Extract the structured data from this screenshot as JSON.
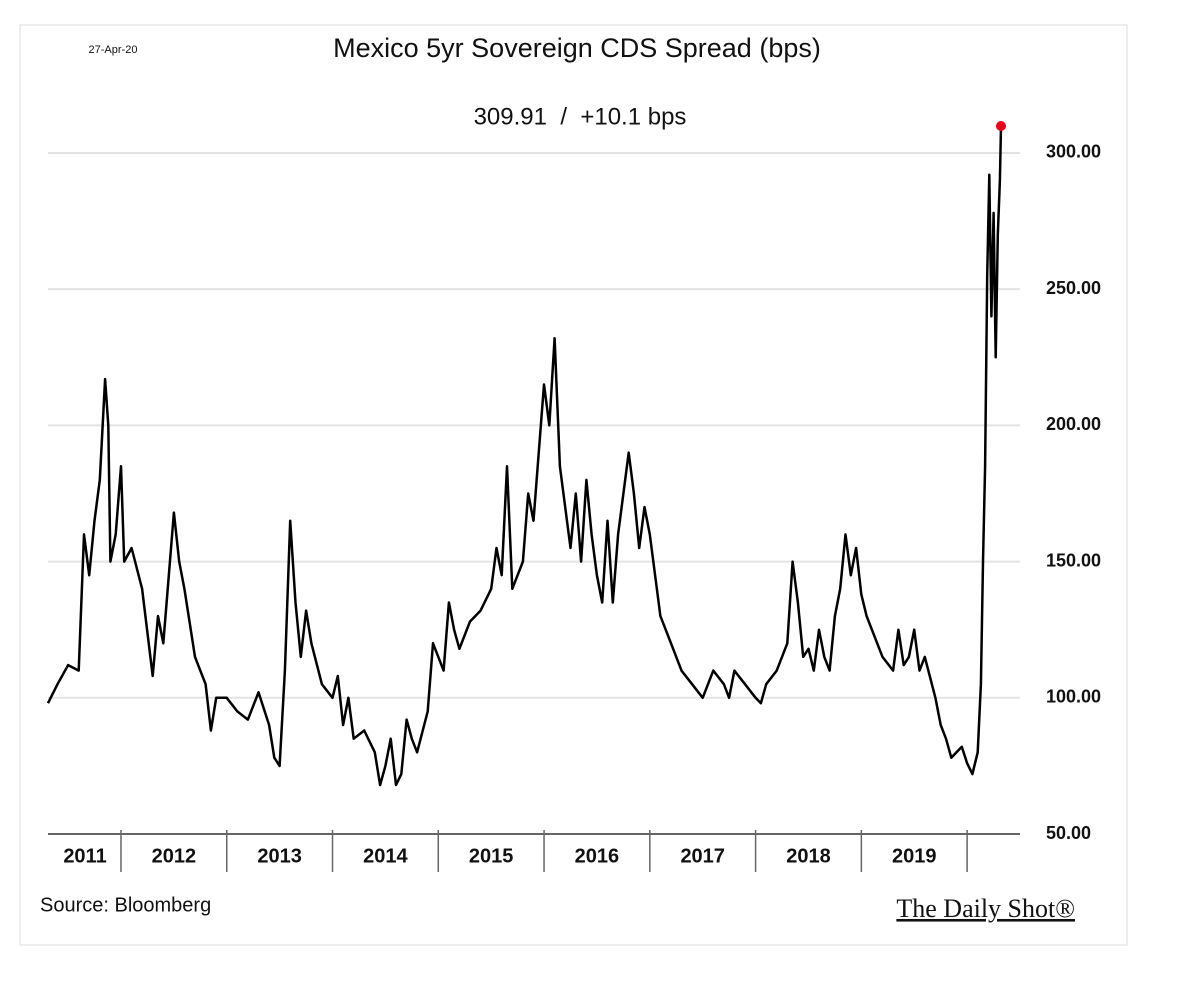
{
  "chart_data": {
    "type": "line",
    "date": "27-Apr-20",
    "title": "Mexico 5yr Sovereign CDS Spread (bps)",
    "subtitle": "309.91  /  +10.1 bps",
    "source": "Source: Bloomberg",
    "brand": "The Daily Shot®",
    "color": "#000000",
    "last_point_color": "#e8001c",
    "grid": true,
    "xlim": [
      2011.31,
      2020.5
    ],
    "ylim": [
      50,
      320
    ],
    "yticks": [
      {
        "value": 50,
        "label": "50.00"
      },
      {
        "value": 100,
        "label": "100.00"
      },
      {
        "value": 150,
        "label": "150.00"
      },
      {
        "value": 200,
        "label": "200.00"
      },
      {
        "value": 250,
        "label": "250.00"
      },
      {
        "value": 300,
        "label": "300.00"
      }
    ],
    "xticks": [
      {
        "value": 2011.66,
        "label": "2011"
      },
      {
        "value": 2012.5,
        "label": "2012"
      },
      {
        "value": 2013.5,
        "label": "2013"
      },
      {
        "value": 2014.5,
        "label": "2014"
      },
      {
        "value": 2015.5,
        "label": "2015"
      },
      {
        "value": 2016.5,
        "label": "2016"
      },
      {
        "value": 2017.5,
        "label": "2017"
      },
      {
        "value": 2018.5,
        "label": "2018"
      },
      {
        "value": 2019.5,
        "label": "2019"
      }
    ],
    "xseparators": [
      2012,
      2013,
      2014,
      2015,
      2016,
      2017,
      2018,
      2019,
      2020
    ],
    "x": [
      2011.31,
      2011.4,
      2011.5,
      2011.6,
      2011.65,
      2011.7,
      2011.75,
      2011.8,
      2011.85,
      2011.88,
      2011.9,
      2011.95,
      2012.0,
      2012.03,
      2012.1,
      2012.2,
      2012.3,
      2012.35,
      2012.4,
      2012.5,
      2012.55,
      2012.6,
      2012.7,
      2012.8,
      2012.85,
      2012.9,
      2013.0,
      2013.1,
      2013.2,
      2013.3,
      2013.4,
      2013.45,
      2013.5,
      2013.55,
      2013.6,
      2013.65,
      2013.7,
      2013.75,
      2013.8,
      2013.9,
      2014.0,
      2014.05,
      2014.1,
      2014.15,
      2014.2,
      2014.3,
      2014.4,
      2014.45,
      2014.5,
      2014.55,
      2014.6,
      2014.65,
      2014.7,
      2014.75,
      2014.8,
      2014.9,
      2014.95,
      2015.0,
      2015.05,
      2015.1,
      2015.15,
      2015.2,
      2015.3,
      2015.4,
      2015.5,
      2015.55,
      2015.6,
      2015.65,
      2015.7,
      2015.8,
      2015.85,
      2015.9,
      2016.0,
      2016.05,
      2016.1,
      2016.15,
      2016.2,
      2016.25,
      2016.3,
      2016.35,
      2016.4,
      2016.45,
      2016.5,
      2016.55,
      2016.6,
      2016.65,
      2016.7,
      2016.8,
      2016.85,
      2016.9,
      2016.95,
      2017.0,
      2017.1,
      2017.15,
      2017.2,
      2017.3,
      2017.4,
      2017.5,
      2017.6,
      2017.7,
      2017.75,
      2017.8,
      2017.9,
      2018.0,
      2018.05,
      2018.1,
      2018.2,
      2018.3,
      2018.35,
      2018.4,
      2018.45,
      2018.5,
      2018.55,
      2018.6,
      2018.65,
      2018.7,
      2018.75,
      2018.8,
      2018.85,
      2018.9,
      2018.95,
      2019.0,
      2019.05,
      2019.1,
      2019.15,
      2019.2,
      2019.3,
      2019.35,
      2019.4,
      2019.45,
      2019.5,
      2019.55,
      2019.6,
      2019.7,
      2019.75,
      2019.8,
      2019.85,
      2019.9,
      2019.95,
      2020.0,
      2020.05,
      2020.1,
      2020.13,
      2020.15,
      2020.17,
      2020.19,
      2020.21,
      2020.23,
      2020.25,
      2020.27,
      2020.29,
      2020.31,
      2020.32
    ],
    "values": [
      98,
      105,
      112,
      110,
      160,
      145,
      165,
      180,
      217,
      200,
      150,
      160,
      185,
      150,
      155,
      140,
      108,
      130,
      120,
      168,
      150,
      140,
      115,
      105,
      88,
      100,
      100,
      95,
      92,
      102,
      90,
      78,
      75,
      110,
      165,
      135,
      115,
      132,
      120,
      105,
      100,
      108,
      90,
      100,
      85,
      88,
      80,
      68,
      75,
      85,
      68,
      72,
      92,
      85,
      80,
      95,
      120,
      115,
      110,
      135,
      125,
      118,
      128,
      132,
      140,
      155,
      145,
      185,
      140,
      150,
      175,
      165,
      215,
      200,
      232,
      185,
      170,
      155,
      175,
      150,
      180,
      160,
      145,
      135,
      165,
      135,
      160,
      190,
      175,
      155,
      170,
      160,
      130,
      125,
      120,
      110,
      105,
      100,
      110,
      105,
      100,
      110,
      105,
      100,
      98,
      105,
      110,
      120,
      150,
      135,
      115,
      118,
      110,
      125,
      115,
      110,
      130,
      140,
      160,
      145,
      155,
      138,
      130,
      125,
      120,
      115,
      110,
      125,
      112,
      115,
      125,
      110,
      115,
      100,
      90,
      85,
      78,
      80,
      82,
      76,
      72,
      80,
      105,
      150,
      185,
      255,
      292,
      240,
      278,
      225,
      270,
      290,
      309.91
    ]
  }
}
